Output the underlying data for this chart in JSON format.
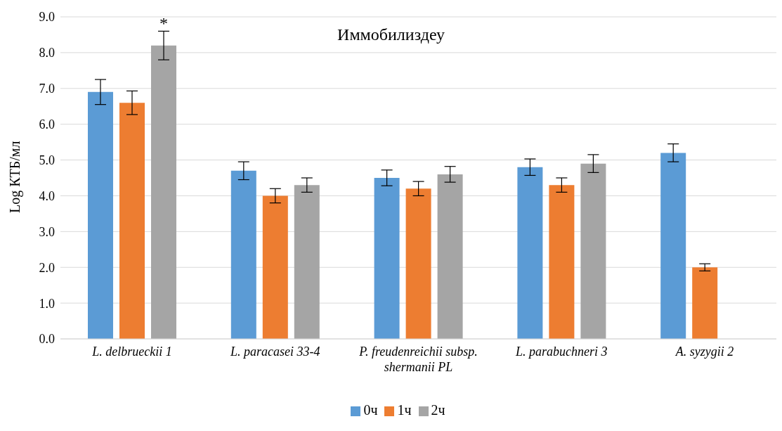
{
  "chart_data": {
    "type": "bar",
    "title": "Иммобилиздеу",
    "ylabel": "Log КТБ/мл",
    "categories": [
      "L. delbrueckii 1",
      "L. paracasei 33-4",
      "P. freudenreichii subsp. shermanii PL",
      "L. parabuchneri 3",
      "A. syzygii 2"
    ],
    "series": [
      {
        "name": "0ч",
        "color": "#5b9bd5",
        "values": [
          6.9,
          4.7,
          4.5,
          4.8,
          5.2
        ],
        "errors": [
          0.35,
          0.25,
          0.22,
          0.23,
          0.25
        ]
      },
      {
        "name": "1ч",
        "color": "#ed7d31",
        "values": [
          6.6,
          4.0,
          4.2,
          4.3,
          2.0
        ],
        "errors": [
          0.33,
          0.2,
          0.2,
          0.2,
          0.1
        ]
      },
      {
        "name": "2ч",
        "color": "#a5a5a5",
        "values": [
          8.2,
          4.3,
          4.6,
          4.9,
          null
        ],
        "errors": [
          0.4,
          0.2,
          0.22,
          0.25,
          null
        ]
      }
    ],
    "annotations": [
      "*"
    ],
    "ylim": [
      0,
      9
    ],
    "yticks": [
      {
        "value": 0,
        "label": "0.0"
      },
      {
        "value": 1,
        "label": "1.0"
      },
      {
        "value": 2,
        "label": "2.0"
      },
      {
        "value": 3,
        "label": "3.0"
      },
      {
        "value": 4,
        "label": "4.0"
      },
      {
        "value": 5,
        "label": "5.0"
      },
      {
        "value": 6,
        "label": "6.0"
      },
      {
        "value": 7,
        "label": "7.0"
      },
      {
        "value": 8,
        "label": "8.0"
      },
      {
        "value": 9,
        "label": "9.0"
      }
    ],
    "grid": "y",
    "legend": "bottom"
  }
}
